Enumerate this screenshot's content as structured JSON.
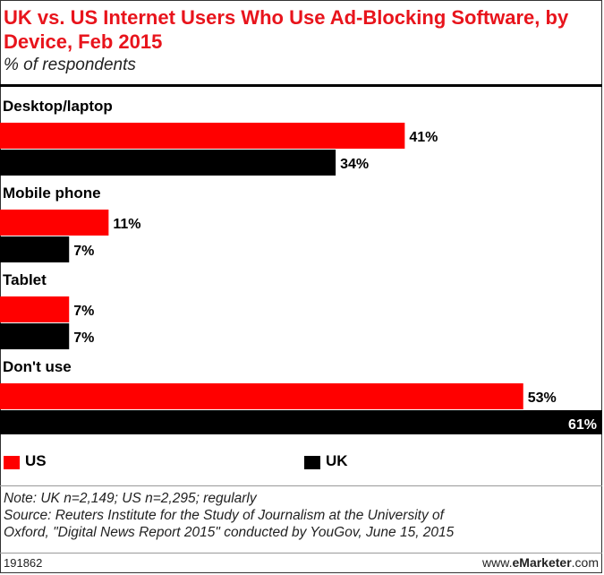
{
  "header": {
    "title": "UK vs. US Internet Users Who Use Ad-Blocking Software, by Device, Feb 2015",
    "subtitle": "% of respondents"
  },
  "colors": {
    "us": "#ff0000",
    "uk": "#000000"
  },
  "chart_data": {
    "type": "bar",
    "orientation": "horizontal",
    "title": "UK vs. US Internet Users Who Use Ad-Blocking Software, by Device, Feb 2015",
    "subtitle": "% of respondents",
    "categories": [
      "Desktop/laptop",
      "Mobile phone",
      "Tablet",
      "Don't use"
    ],
    "series": [
      {
        "name": "US",
        "values": [
          41,
          11,
          7,
          53
        ],
        "labels": [
          "41%",
          "11%",
          "7%",
          "53%"
        ]
      },
      {
        "name": "UK",
        "values": [
          34,
          7,
          7,
          61
        ],
        "labels": [
          "34%",
          "7%",
          "7%",
          "61%"
        ]
      }
    ],
    "xlim": [
      0,
      61
    ],
    "grid": false,
    "legend": "bottom"
  },
  "legend": {
    "us_label": "US",
    "uk_label": "UK"
  },
  "notes": {
    "line1": "Note: UK n=2,149; US n=2,295; regularly",
    "line2": "Source: Reuters Institute for the Study of Journalism at the University of",
    "line3": "Oxford, \"Digital News Report 2015\" conducted by YouGov, June 15, 2015"
  },
  "footer": {
    "id": "191862",
    "brand_prefix": "www.",
    "brand_name": "eMarketer",
    "brand_suffix": ".com"
  }
}
